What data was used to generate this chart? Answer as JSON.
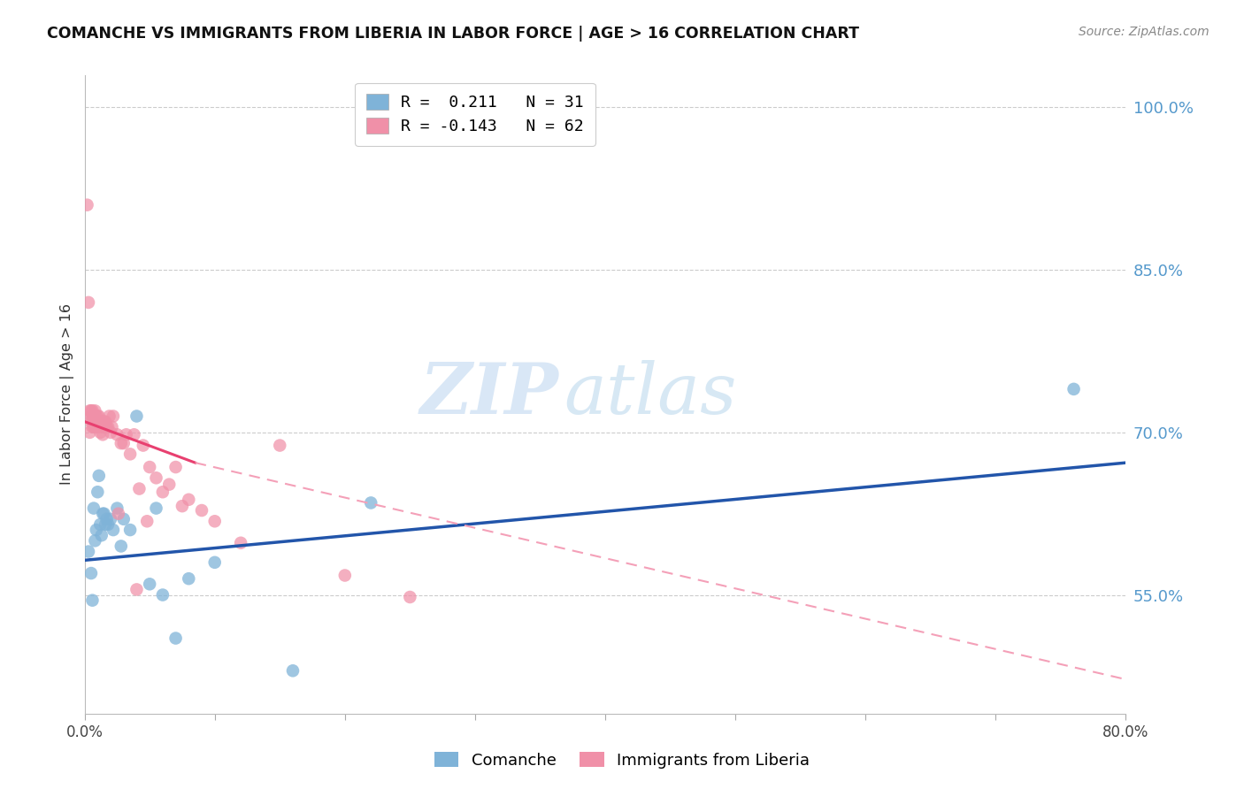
{
  "title": "COMANCHE VS IMMIGRANTS FROM LIBERIA IN LABOR FORCE | AGE > 16 CORRELATION CHART",
  "source": "Source: ZipAtlas.com",
  "ylabel": "In Labor Force | Age > 16",
  "xlim": [
    0.0,
    0.8
  ],
  "ylim": [
    0.44,
    1.03
  ],
  "xticks": [
    0.0,
    0.1,
    0.2,
    0.3,
    0.4,
    0.5,
    0.6,
    0.7,
    0.8
  ],
  "xticklabels": [
    "0.0%",
    "",
    "",
    "",
    "",
    "",
    "",
    "",
    "80.0%"
  ],
  "yticks_right": [
    0.55,
    0.7,
    0.85,
    1.0
  ],
  "ytick_right_labels": [
    "55.0%",
    "70.0%",
    "85.0%",
    "100.0%"
  ],
  "legend_label_1": "R =  0.211   N = 31",
  "legend_label_2": "R = -0.143   N = 62",
  "comanche_color": "#7fb3d8",
  "liberia_color": "#f090a8",
  "comanche_line_color": "#2255aa",
  "liberia_line_solid_color": "#e84070",
  "liberia_line_dash_color": "#f4a0b8",
  "watermark_zip": "ZIP",
  "watermark_atlas": "atlas",
  "comanche_x": [
    0.003,
    0.005,
    0.006,
    0.007,
    0.008,
    0.009,
    0.01,
    0.011,
    0.012,
    0.013,
    0.014,
    0.015,
    0.016,
    0.017,
    0.018,
    0.02,
    0.022,
    0.025,
    0.028,
    0.03,
    0.035,
    0.04,
    0.05,
    0.055,
    0.06,
    0.07,
    0.08,
    0.1,
    0.16,
    0.22,
    0.76
  ],
  "comanche_y": [
    0.59,
    0.57,
    0.545,
    0.63,
    0.6,
    0.61,
    0.645,
    0.66,
    0.615,
    0.605,
    0.625,
    0.625,
    0.615,
    0.62,
    0.615,
    0.62,
    0.61,
    0.63,
    0.595,
    0.62,
    0.61,
    0.715,
    0.56,
    0.63,
    0.55,
    0.51,
    0.565,
    0.58,
    0.48,
    0.635,
    0.74
  ],
  "liberia_x": [
    0.002,
    0.003,
    0.004,
    0.004,
    0.005,
    0.005,
    0.005,
    0.006,
    0.006,
    0.006,
    0.007,
    0.007,
    0.007,
    0.008,
    0.008,
    0.008,
    0.009,
    0.009,
    0.01,
    0.01,
    0.01,
    0.011,
    0.011,
    0.012,
    0.012,
    0.013,
    0.013,
    0.014,
    0.015,
    0.015,
    0.016,
    0.016,
    0.017,
    0.018,
    0.019,
    0.02,
    0.021,
    0.022,
    0.025,
    0.026,
    0.028,
    0.03,
    0.032,
    0.035,
    0.038,
    0.04,
    0.042,
    0.045,
    0.048,
    0.05,
    0.055,
    0.06,
    0.065,
    0.07,
    0.075,
    0.08,
    0.09,
    0.1,
    0.12,
    0.15,
    0.2,
    0.25
  ],
  "liberia_y": [
    0.91,
    0.82,
    0.72,
    0.7,
    0.715,
    0.71,
    0.72,
    0.72,
    0.715,
    0.705,
    0.715,
    0.71,
    0.705,
    0.72,
    0.71,
    0.705,
    0.715,
    0.71,
    0.71,
    0.705,
    0.715,
    0.71,
    0.715,
    0.71,
    0.7,
    0.71,
    0.705,
    0.698,
    0.71,
    0.705,
    0.705,
    0.71,
    0.705,
    0.705,
    0.715,
    0.7,
    0.705,
    0.715,
    0.698,
    0.625,
    0.69,
    0.69,
    0.698,
    0.68,
    0.698,
    0.555,
    0.648,
    0.688,
    0.618,
    0.668,
    0.658,
    0.645,
    0.652,
    0.668,
    0.632,
    0.638,
    0.628,
    0.618,
    0.598,
    0.688,
    0.568,
    0.548
  ],
  "blue_trend_x0": 0.0,
  "blue_trend_y0": 0.582,
  "blue_trend_x1": 0.8,
  "blue_trend_y1": 0.672,
  "pink_trend_x0": 0.0,
  "pink_trend_y0": 0.71,
  "pink_trend_x_solid_end": 0.085,
  "pink_trend_y_solid_end": 0.672,
  "pink_trend_x1": 0.8,
  "pink_trend_y1": 0.472
}
